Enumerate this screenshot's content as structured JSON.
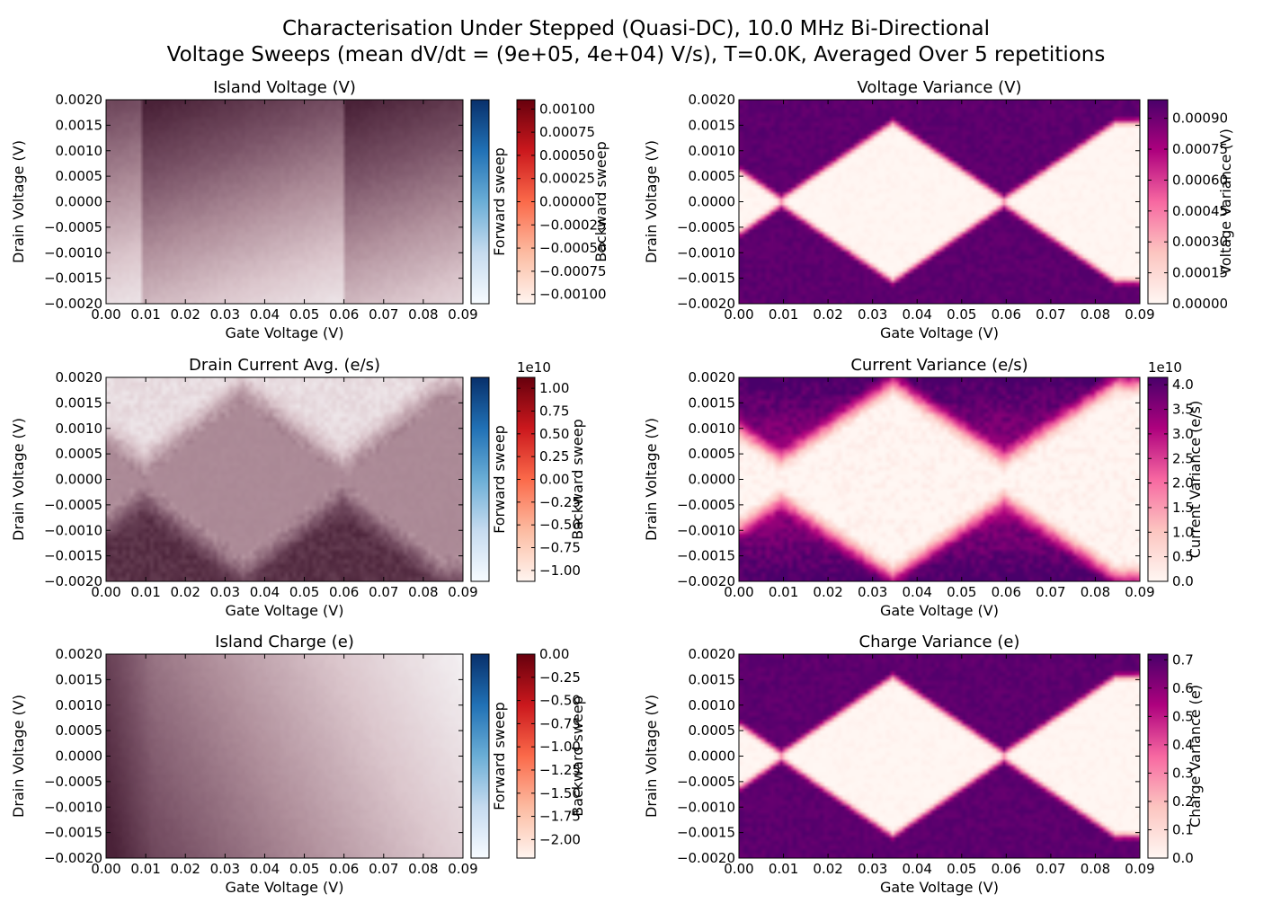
{
  "figure": {
    "title_line1": "Characterisation Under Stepped (Quasi-DC), 10.0 MHz Bi-Directional",
    "title_line2": "Voltage Sweeps (mean dV/dt = (9e+05, 4e+04) V/s), T=0.0K, Averaged Over 5 repetitions"
  },
  "colors": {
    "forward_cmap": [
      "#f7fbff",
      "#c6dbef",
      "#6baed6",
      "#2171b5",
      "#08306b"
    ],
    "backward_cmap": [
      "#fff5f0",
      "#fcbba1",
      "#fb6a4a",
      "#cb181d",
      "#67000d"
    ],
    "rdpu_cmap": [
      "#fff7f3",
      "#fcc5c0",
      "#f768a1",
      "#ae017e",
      "#49006a"
    ]
  },
  "chart_data": [
    {
      "type": "heatmap",
      "id": "island_voltage",
      "title": "Island Voltage (V)",
      "xlabel": "Gate Voltage (V)",
      "ylabel": "Drain Voltage (V)",
      "xlim": [
        0.0,
        0.09
      ],
      "ylim": [
        -0.002,
        0.002
      ],
      "x_ticks": [
        "0.00",
        "0.01",
        "0.02",
        "0.03",
        "0.04",
        "0.05",
        "0.06",
        "0.07",
        "0.08",
        "0.09"
      ],
      "y_ticks": [
        "0.0020",
        "0.0015",
        "0.0010",
        "0.0005",
        "0.0000",
        "−0.0005",
        "−0.0010",
        "−0.0015",
        "−0.0020"
      ],
      "pattern": "island_voltage",
      "colorbars": [
        {
          "label": "Forward sweep",
          "cmap": "forward",
          "ticks": []
        },
        {
          "label": "Backward sweep",
          "cmap": "backward",
          "multiplier": "",
          "range": [
            -0.0011,
            0.0011
          ],
          "ticks": [
            "0.00100",
            "0.00075",
            "0.00050",
            "0.00025",
            "0.00000",
            "−0.00025",
            "−0.00050",
            "−0.00075",
            "−0.00100"
          ]
        }
      ]
    },
    {
      "type": "heatmap",
      "id": "voltage_variance",
      "title": "Voltage Variance (V)",
      "xlabel": "Gate Voltage (V)",
      "ylabel": "Drain Voltage (V)",
      "xlim": [
        0.0,
        0.09
      ],
      "ylim": [
        -0.002,
        0.002
      ],
      "x_ticks": [
        "0.00",
        "0.01",
        "0.02",
        "0.03",
        "0.04",
        "0.05",
        "0.06",
        "0.07",
        "0.08",
        "0.09"
      ],
      "y_ticks": [
        "0.0020",
        "0.0015",
        "0.0010",
        "0.0005",
        "0.0000",
        "−0.0005",
        "−0.0010",
        "−0.0015",
        "−0.0020"
      ],
      "pattern": "variance_sharp",
      "colorbars": [
        {
          "label": "Voltage Variance (V)",
          "cmap": "rdpu",
          "multiplier": "",
          "range": [
            0.0,
            0.00099
          ],
          "ticks": [
            "0.00090",
            "0.00075",
            "0.00060",
            "0.00045",
            "0.00030",
            "0.00015",
            "0.00000"
          ]
        }
      ]
    },
    {
      "type": "heatmap",
      "id": "drain_current",
      "title": "Drain Current Avg. (e/s)",
      "xlabel": "Gate Voltage (V)",
      "ylabel": "Drain Voltage (V)",
      "xlim": [
        0.0,
        0.09
      ],
      "ylim": [
        -0.002,
        0.002
      ],
      "x_ticks": [
        "0.00",
        "0.01",
        "0.02",
        "0.03",
        "0.04",
        "0.05",
        "0.06",
        "0.07",
        "0.08",
        "0.09"
      ],
      "y_ticks": [
        "0.0020",
        "0.0015",
        "0.0010",
        "0.0005",
        "0.0000",
        "−0.0005",
        "−0.0010",
        "−0.0015",
        "−0.0020"
      ],
      "pattern": "current",
      "colorbars": [
        {
          "label": "Forward sweep",
          "cmap": "forward",
          "ticks": []
        },
        {
          "label": "Backward sweep",
          "cmap": "backward",
          "multiplier": "1e10",
          "range": [
            -1.12,
            1.12
          ],
          "ticks": [
            "1.00",
            "0.75",
            "0.50",
            "0.25",
            "0.00",
            "−0.25",
            "−0.50",
            "−0.75",
            "−1.00"
          ]
        }
      ]
    },
    {
      "type": "heatmap",
      "id": "current_variance",
      "title": "Current Variance (e/s)",
      "xlabel": "Gate Voltage (V)",
      "ylabel": "Drain Voltage (V)",
      "xlim": [
        0.0,
        0.09
      ],
      "ylim": [
        -0.002,
        0.002
      ],
      "x_ticks": [
        "0.00",
        "0.01",
        "0.02",
        "0.03",
        "0.04",
        "0.05",
        "0.06",
        "0.07",
        "0.08",
        "0.09"
      ],
      "y_ticks": [
        "0.0020",
        "0.0015",
        "0.0010",
        "0.0005",
        "0.0000",
        "−0.0005",
        "−0.0010",
        "−0.0015",
        "−0.0020"
      ],
      "pattern": "variance_soft",
      "colorbars": [
        {
          "label": "Current Variance (e/s)",
          "cmap": "rdpu",
          "multiplier": "1e10",
          "range": [
            0.0,
            4.15
          ],
          "ticks": [
            "4.0",
            "3.5",
            "3.0",
            "2.5",
            "2.0",
            "1.5",
            "1.0",
            "0.5",
            "0.0"
          ]
        }
      ]
    },
    {
      "type": "heatmap",
      "id": "island_charge",
      "title": "Island Charge (e)",
      "xlabel": "Gate Voltage (V)",
      "ylabel": "Drain Voltage (V)",
      "xlim": [
        0.0,
        0.09
      ],
      "ylim": [
        -0.002,
        0.002
      ],
      "x_ticks": [
        "0.00",
        "0.01",
        "0.02",
        "0.03",
        "0.04",
        "0.05",
        "0.06",
        "0.07",
        "0.08",
        "0.09"
      ],
      "y_ticks": [
        "0.0020",
        "0.0015",
        "0.0010",
        "0.0005",
        "0.0000",
        "−0.0005",
        "−0.0010",
        "−0.0015",
        "−0.0020"
      ],
      "pattern": "charge",
      "colorbars": [
        {
          "label": "Forward sweep",
          "cmap": "forward",
          "ticks": []
        },
        {
          "label": "Backward sweep",
          "cmap": "backward",
          "multiplier": "",
          "range": [
            -2.2,
            0.0
          ],
          "ticks": [
            "0.00",
            "−0.25",
            "−0.50",
            "−0.75",
            "−1.00",
            "−1.25",
            "−1.50",
            "−1.75",
            "−2.00"
          ]
        }
      ]
    },
    {
      "type": "heatmap",
      "id": "charge_variance",
      "title": "Charge Variance (e)",
      "xlabel": "Gate Voltage (V)",
      "ylabel": "Drain Voltage (V)",
      "xlim": [
        0.0,
        0.09
      ],
      "ylim": [
        -0.002,
        0.002
      ],
      "x_ticks": [
        "0.00",
        "0.01",
        "0.02",
        "0.03",
        "0.04",
        "0.05",
        "0.06",
        "0.07",
        "0.08",
        "0.09"
      ],
      "y_ticks": [
        "0.0020",
        "0.0015",
        "0.0010",
        "0.0005",
        "0.0000",
        "−0.0005",
        "−0.0010",
        "−0.0015",
        "−0.0020"
      ],
      "pattern": "variance_sharp",
      "colorbars": [
        {
          "label": "Charge Variance (e)",
          "cmap": "rdpu",
          "multiplier": "",
          "range": [
            0.0,
            0.72
          ],
          "ticks": [
            "0.7",
            "0.6",
            "0.5",
            "0.4",
            "0.3",
            "0.2",
            "0.1",
            "0.0"
          ]
        }
      ]
    }
  ]
}
